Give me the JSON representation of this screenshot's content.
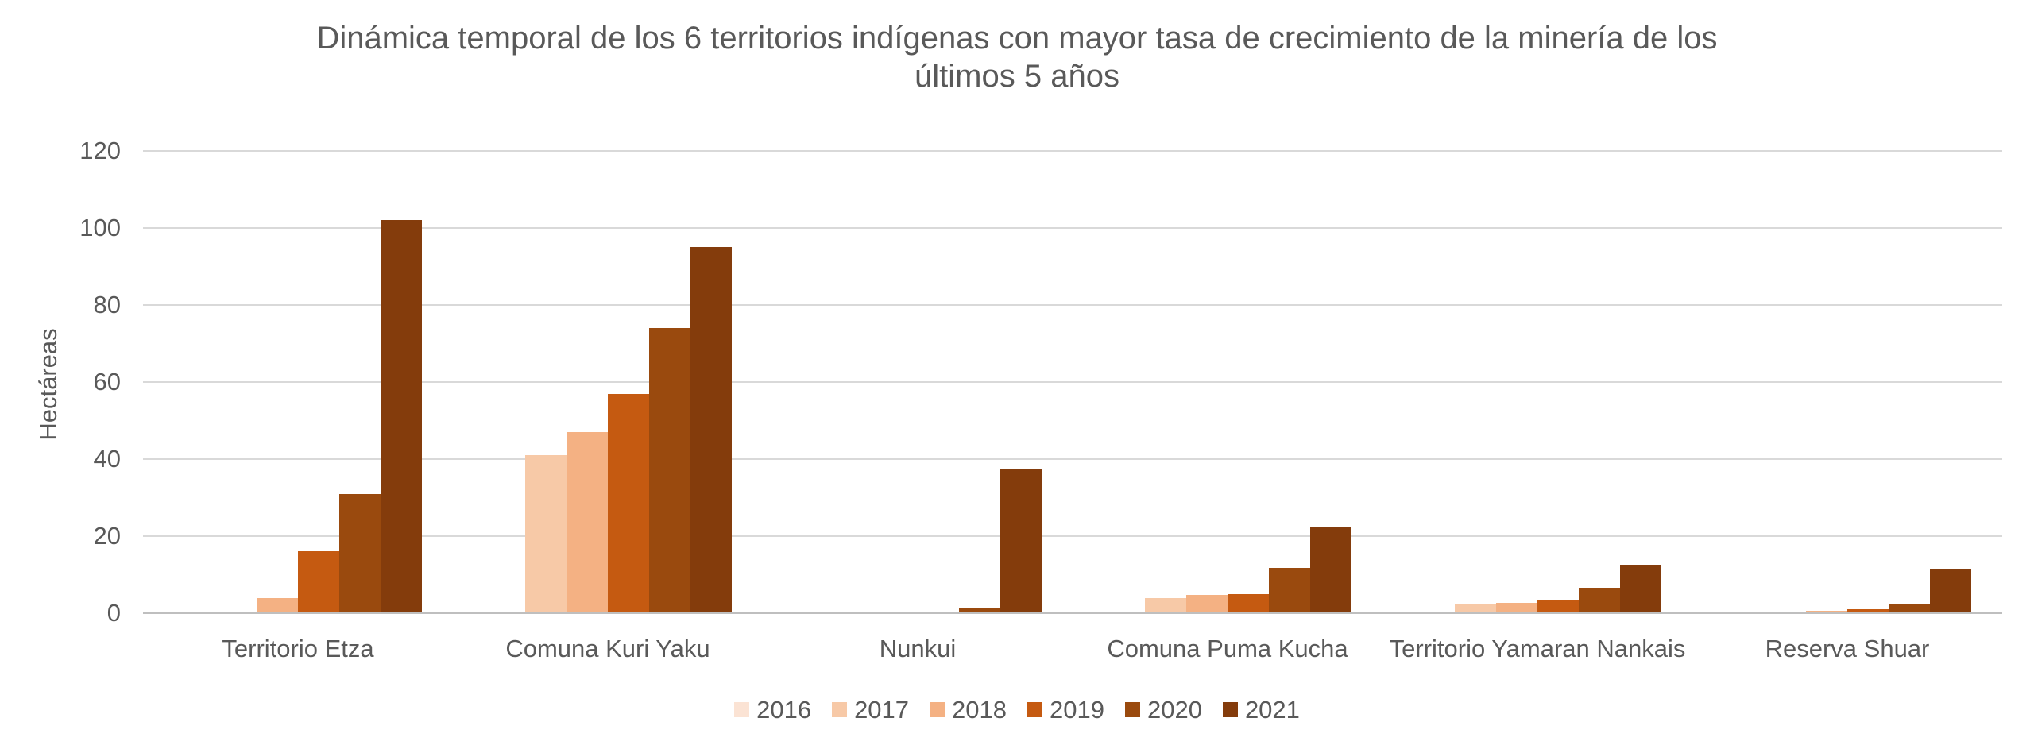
{
  "chart_data": {
    "type": "bar",
    "title": "Dinámica temporal de los 6 territorios indígenas con mayor tasa de crecimiento de la minería de los últimos 5 años",
    "title_lines": [
      "Dinámica temporal de los 6 territorios indígenas con mayor tasa de crecimiento de la minería de los",
      "últimos 5 años"
    ],
    "ylabel": "Hectáreas",
    "ylim": [
      0,
      120
    ],
    "yticks": [
      0,
      20,
      40,
      60,
      80,
      100,
      120
    ],
    "grid": true,
    "legend_position": "bottom",
    "categories": [
      "Territorio Etza",
      "Comuna Kuri Yaku",
      "Nunkui",
      "Comuna Puma Kucha",
      "Territorio Yamaran Nankais",
      "Reserva Shuar"
    ],
    "series": [
      {
        "name": "2016",
        "color": "#FBE3D4",
        "values": [
          0,
          0,
          0,
          0,
          0,
          0
        ]
      },
      {
        "name": "2017",
        "color": "#F7C9A7",
        "values": [
          0.3,
          41,
          0,
          4,
          2.5,
          0
        ]
      },
      {
        "name": "2018",
        "color": "#F4B183",
        "values": [
          4,
          47,
          0,
          4.7,
          2.7,
          0.7
        ]
      },
      {
        "name": "2019",
        "color": "#C55A11",
        "values": [
          16,
          57,
          0,
          5,
          3.6,
          1
        ]
      },
      {
        "name": "2020",
        "color": "#9A4A0E",
        "values": [
          31,
          74,
          1.2,
          11.7,
          6.5,
          2.3
        ]
      },
      {
        "name": "2021",
        "color": "#843C0C",
        "values": [
          102,
          95,
          37.3,
          22.3,
          12.6,
          11.5
        ]
      }
    ],
    "colors": {
      "text": "#595959",
      "gridline": "#D9D9D9",
      "axis_line": "#BFBFBF"
    }
  }
}
